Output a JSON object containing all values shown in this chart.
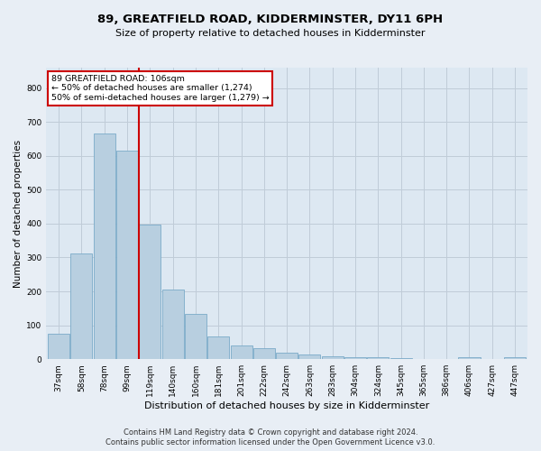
{
  "title_line1": "89, GREATFIELD ROAD, KIDDERMINSTER, DY11 6PH",
  "title_line2": "Size of property relative to detached houses in Kidderminster",
  "xlabel": "Distribution of detached houses by size in Kidderminster",
  "ylabel": "Number of detached properties",
  "footnote1": "Contains HM Land Registry data © Crown copyright and database right 2024.",
  "footnote2": "Contains public sector information licensed under the Open Government Licence v3.0.",
  "categories": [
    "37sqm",
    "58sqm",
    "78sqm",
    "99sqm",
    "119sqm",
    "140sqm",
    "160sqm",
    "181sqm",
    "201sqm",
    "222sqm",
    "242sqm",
    "263sqm",
    "283sqm",
    "304sqm",
    "324sqm",
    "345sqm",
    "365sqm",
    "386sqm",
    "406sqm",
    "427sqm",
    "447sqm"
  ],
  "values": [
    75,
    312,
    665,
    615,
    398,
    205,
    133,
    68,
    40,
    33,
    20,
    15,
    8,
    5,
    5,
    2,
    0,
    0,
    5,
    0,
    5
  ],
  "bar_color": "#b8cfe0",
  "bar_edge_color": "#7aaac8",
  "red_line_idx": 3,
  "highlight_label": "89 GREATFIELD ROAD: 106sqm",
  "annotation_line1": "← 50% of detached houses are smaller (1,274)",
  "annotation_line2": "50% of semi-detached houses are larger (1,279) →",
  "annotation_box_edgecolor": "#cc0000",
  "ylim": [
    0,
    860
  ],
  "yticks": [
    0,
    100,
    200,
    300,
    400,
    500,
    600,
    700,
    800
  ],
  "grid_color": "#c0ccd8",
  "bg_color": "#dde8f2",
  "fig_bg_color": "#e8eef5",
  "title1_fontsize": 9.5,
  "title2_fontsize": 8,
  "ylabel_fontsize": 7.5,
  "xlabel_fontsize": 8,
  "tick_fontsize": 6.5,
  "footnote_fontsize": 6
}
